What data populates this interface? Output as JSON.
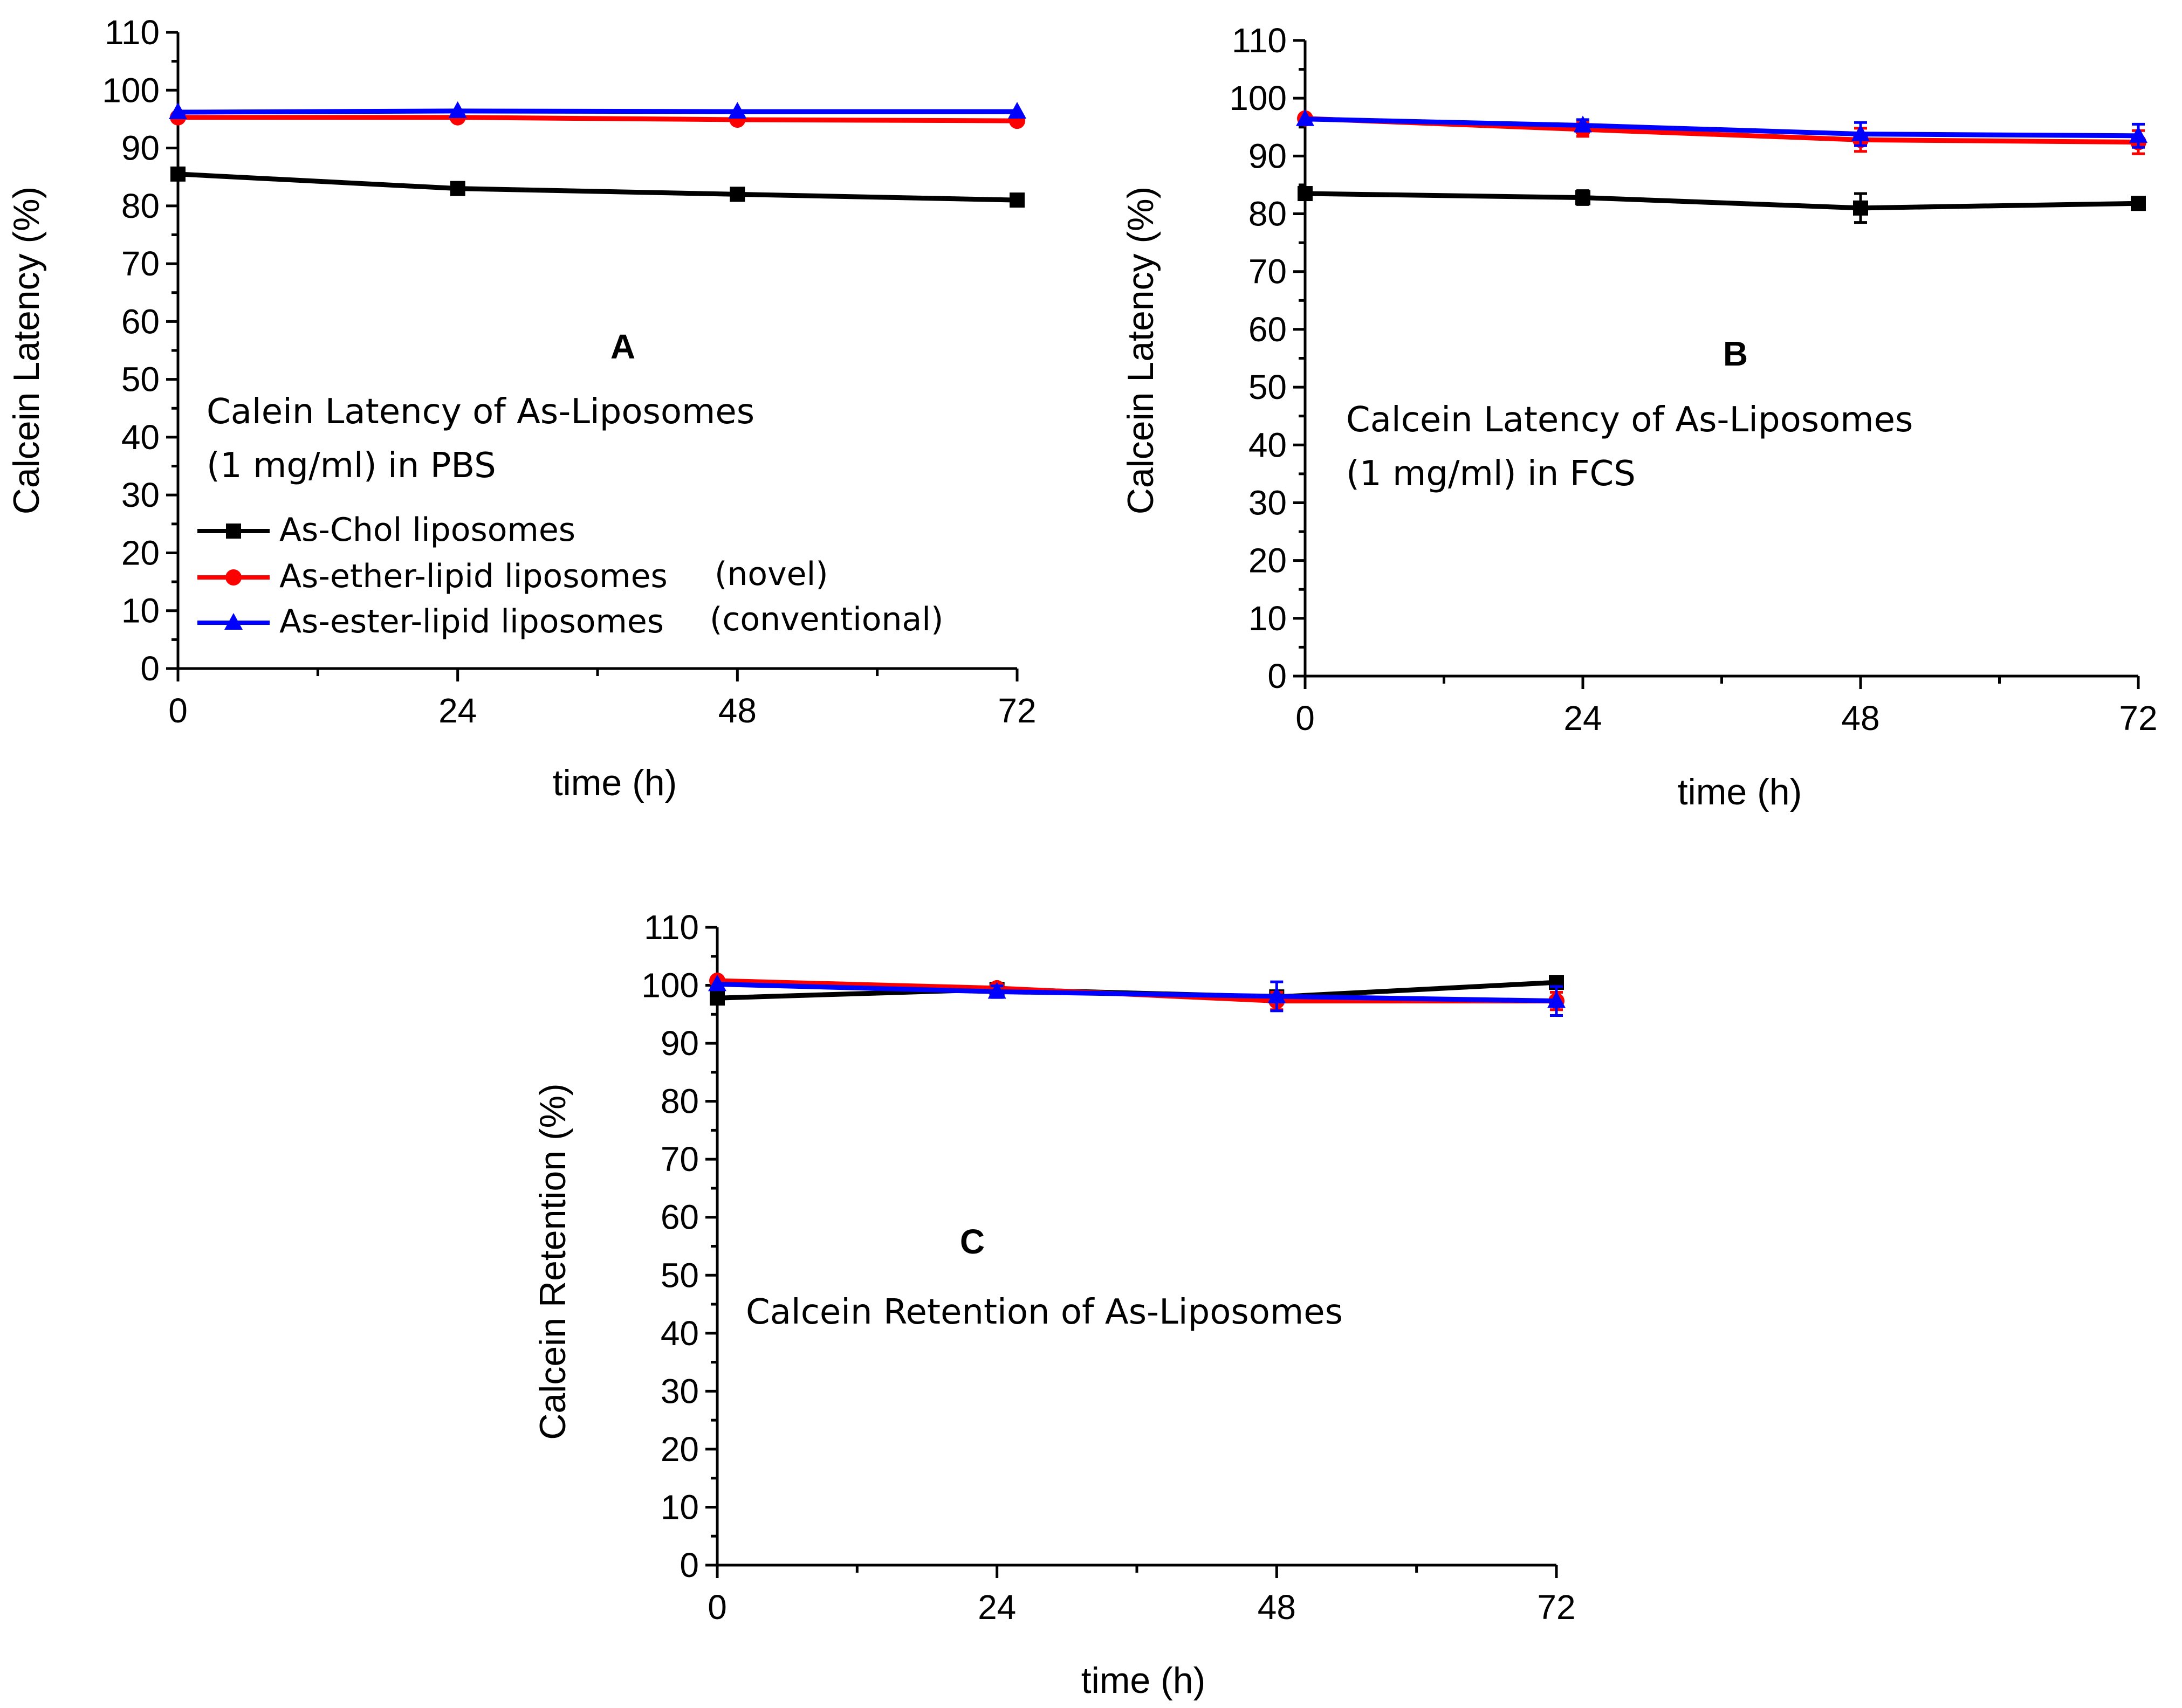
{
  "chart_data": [
    {
      "panel": "A",
      "type": "line",
      "xlabel": "time (h)",
      "ylabel": "Calcein Latency (%)",
      "xlim": [
        0,
        72
      ],
      "ylim": [
        0,
        110
      ],
      "x_ticks": [
        0,
        24,
        48,
        72
      ],
      "y_ticks": [
        0,
        10,
        20,
        30,
        40,
        50,
        60,
        70,
        80,
        90,
        100,
        110
      ],
      "annotation_lines": [
        "Calein Latency of As-Liposomes",
        "(1 mg/ml) in PBS"
      ],
      "legend": [
        {
          "label": "As-Chol liposomes"
        },
        {
          "label": "As-ether-lipid liposomes",
          "suffix": "(novel)"
        },
        {
          "label": "As-ester-lipid liposomes",
          "suffix": "(conventional)"
        }
      ],
      "x": [
        0,
        24,
        48,
        72
      ],
      "series": [
        {
          "name": "As-Chol liposomes",
          "color": "#000000",
          "marker": "square",
          "values": [
            85.5,
            83.0,
            82.0,
            81.0
          ],
          "errors": [
            0,
            0,
            0,
            0
          ]
        },
        {
          "name": "As-ether-lipid liposomes (novel)",
          "color": "#ff0000",
          "marker": "circle",
          "values": [
            95.3,
            95.3,
            94.9,
            94.7
          ],
          "errors": [
            0,
            0,
            0,
            0
          ]
        },
        {
          "name": "As-ester-lipid liposomes (conventional)",
          "color": "#0000ff",
          "marker": "triangle",
          "values": [
            96.2,
            96.4,
            96.3,
            96.3
          ],
          "errors": [
            0,
            0,
            0,
            0
          ]
        }
      ]
    },
    {
      "panel": "B",
      "type": "line",
      "xlabel": "time (h)",
      "ylabel": "Calcein Latency (%)",
      "xlim": [
        0,
        72
      ],
      "ylim": [
        0,
        110
      ],
      "x_ticks": [
        0,
        24,
        48,
        72
      ],
      "y_ticks": [
        0,
        10,
        20,
        30,
        40,
        50,
        60,
        70,
        80,
        90,
        100,
        110
      ],
      "annotation_lines": [
        "Calcein Latency of As-Liposomes",
        "(1 mg/ml) in FCS"
      ],
      "x": [
        0,
        24,
        48,
        72
      ],
      "series": [
        {
          "name": "As-Chol liposomes",
          "color": "#000000",
          "marker": "square",
          "values": [
            83.5,
            82.8,
            81.0,
            81.8
          ],
          "errors": [
            0,
            1.2,
            2.5,
            0
          ]
        },
        {
          "name": "As-ether-lipid liposomes (novel)",
          "color": "#ff0000",
          "marker": "circle",
          "values": [
            96.5,
            94.6,
            92.8,
            92.4
          ],
          "errors": [
            0,
            1.2,
            2.0,
            2.0
          ]
        },
        {
          "name": "As-ester-lipid liposomes (conventional)",
          "color": "#0000ff",
          "marker": "triangle",
          "values": [
            96.4,
            95.3,
            93.8,
            93.5
          ],
          "errors": [
            0,
            1.0,
            2.0,
            2.0
          ]
        }
      ]
    },
    {
      "panel": "C",
      "type": "line",
      "xlabel": "time (h)",
      "ylabel": "Calcein Retention (%)",
      "xlim": [
        0,
        72
      ],
      "ylim": [
        0,
        110
      ],
      "x_ticks": [
        0,
        24,
        48,
        72
      ],
      "y_ticks": [
        0,
        10,
        20,
        30,
        40,
        50,
        60,
        70,
        80,
        90,
        100,
        110
      ],
      "annotation_lines": [
        "Calcein Retention of As-Liposomes"
      ],
      "x": [
        0,
        24,
        48,
        72
      ],
      "series": [
        {
          "name": "As-Chol liposomes",
          "color": "#000000",
          "marker": "square",
          "values": [
            97.8,
            99.3,
            98.0,
            100.5
          ],
          "errors": [
            0,
            0,
            0,
            0
          ]
        },
        {
          "name": "As-ether-lipid liposomes (novel)",
          "color": "#ff0000",
          "marker": "circle",
          "values": [
            100.8,
            99.5,
            97.3,
            97.3
          ],
          "errors": [
            0,
            0,
            1.5,
            1.5
          ]
        },
        {
          "name": "As-ester-lipid liposomes (conventional)",
          "color": "#0000ff",
          "marker": "triangle",
          "values": [
            100.2,
            98.9,
            98.1,
            97.3
          ],
          "errors": [
            0,
            1.0,
            2.5,
            2.5
          ]
        }
      ]
    }
  ]
}
